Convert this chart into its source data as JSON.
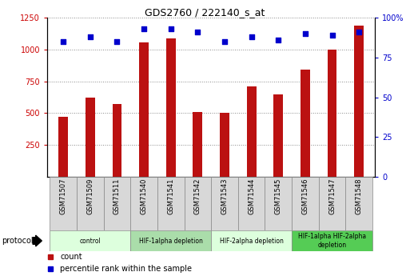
{
  "title": "GDS2760 / 222140_s_at",
  "samples": [
    "GSM71507",
    "GSM71509",
    "GSM71511",
    "GSM71540",
    "GSM71541",
    "GSM71542",
    "GSM71543",
    "GSM71544",
    "GSM71545",
    "GSM71546",
    "GSM71547",
    "GSM71548"
  ],
  "counts": [
    470,
    620,
    570,
    1055,
    1090,
    510,
    500,
    710,
    650,
    840,
    1000,
    1190
  ],
  "percentiles": [
    85,
    88,
    85,
    93,
    93,
    91,
    85,
    88,
    86,
    90,
    89,
    91
  ],
  "bar_color": "#bb1111",
  "dot_color": "#0000cc",
  "ylim_left": [
    0,
    1250
  ],
  "ylim_right": [
    0,
    100
  ],
  "yticks_left": [
    250,
    500,
    750,
    1000,
    1250
  ],
  "yticks_right": [
    0,
    25,
    50,
    75,
    100
  ],
  "protocols": [
    {
      "label": "control",
      "start": 0,
      "end": 3,
      "color": "#ddffdd"
    },
    {
      "label": "HIF-1alpha depletion",
      "start": 3,
      "end": 6,
      "color": "#aaddaa"
    },
    {
      "label": "HIF-2alpha depletion",
      "start": 6,
      "end": 9,
      "color": "#ddffdd"
    },
    {
      "label": "HIF-1alpha HIF-2alpha\ndepletion",
      "start": 9,
      "end": 12,
      "color": "#55cc55"
    }
  ],
  "protocol_label": "protocol",
  "legend_count_label": "count",
  "legend_pct_label": "percentile rank within the sample",
  "bg_color": "#ffffff",
  "tick_label_color_left": "#cc0000",
  "tick_label_color_right": "#0000cc",
  "grid_color": "#888888",
  "sample_box_color": "#d8d8d8",
  "bar_width": 0.35
}
